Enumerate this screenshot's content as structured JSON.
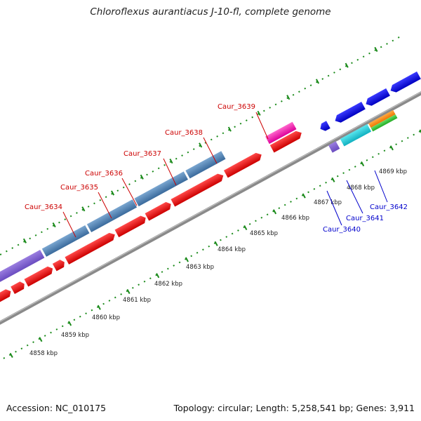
{
  "title": "Chloroflexus aurantiacus J-10-fl, complete genome",
  "footer": {
    "accession": "Accession: NC_010175",
    "summary": "Topology: circular; Length: 5,258,541 bp; Genes: 3,911"
  },
  "colors": {
    "forward_cds": "#4a7fb5",
    "reverse_cds": "#ee0000",
    "gene_label_red": "#cc0000",
    "gene_label_blue": "#0000cc",
    "tick_green": "#1a8a1a",
    "backbone": "#999999"
  },
  "ticks": [
    {
      "label": "4858 kbp"
    },
    {
      "label": "4859 kbp"
    },
    {
      "label": "4860 kbp"
    },
    {
      "label": "4861 kbp"
    },
    {
      "label": "4862 kbp"
    },
    {
      "label": "4863 kbp"
    },
    {
      "label": "4864 kbp"
    },
    {
      "label": "4865 kbp"
    },
    {
      "label": "4866 kbp"
    },
    {
      "label": "4867 kbp"
    },
    {
      "label": "4868 kbp"
    },
    {
      "label": "4869 kbp"
    }
  ],
  "gene_labels": [
    {
      "text": "Caur_3634",
      "color": "#cc0000"
    },
    {
      "text": "Caur_3635",
      "color": "#cc0000"
    },
    {
      "text": "Caur_3636",
      "color": "#cc0000"
    },
    {
      "text": "Caur_3637",
      "color": "#cc0000"
    },
    {
      "text": "Caur_3638",
      "color": "#cc0000"
    },
    {
      "text": "Caur_3639",
      "color": "#cc0000"
    },
    {
      "text": "Caur_3640",
      "color": "#0000cc"
    },
    {
      "text": "Caur_3641",
      "color": "#0000cc"
    },
    {
      "text": "Caur_3642",
      "color": "#0000cc"
    }
  ]
}
